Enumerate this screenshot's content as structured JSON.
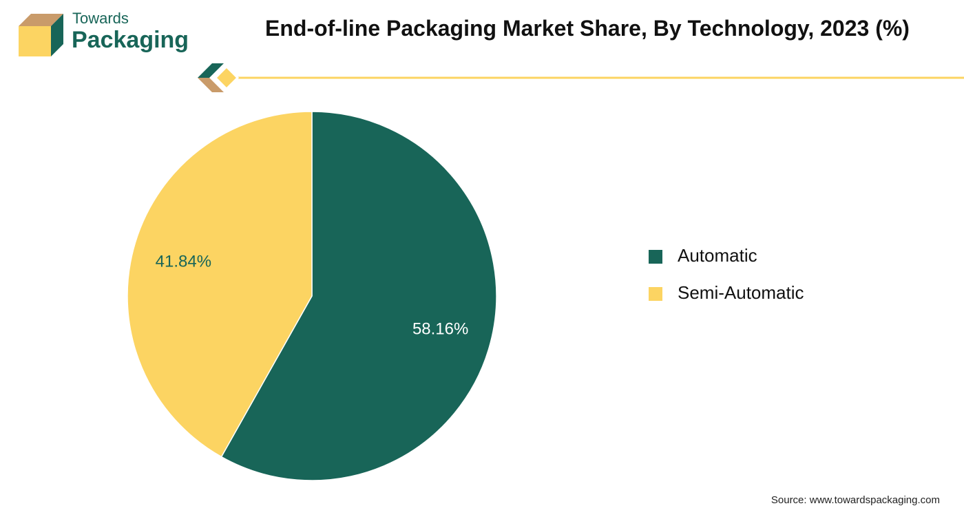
{
  "logo": {
    "line1": "Towards",
    "line2": "Packaging"
  },
  "chart_data": {
    "type": "pie",
    "title": "End-of-line Packaging Market Share, By Technology, 2023 (%)",
    "categories": [
      "Automatic",
      "Semi-Automatic"
    ],
    "values": [
      58.16,
      41.84
    ],
    "value_labels": [
      "58.16%",
      "41.84%"
    ],
    "colors": [
      "#186558",
      "#fcd462"
    ],
    "label_colors": [
      "#ffffff",
      "#186558"
    ],
    "legend": "right",
    "source": "Source: www.towardspackaging.com"
  }
}
